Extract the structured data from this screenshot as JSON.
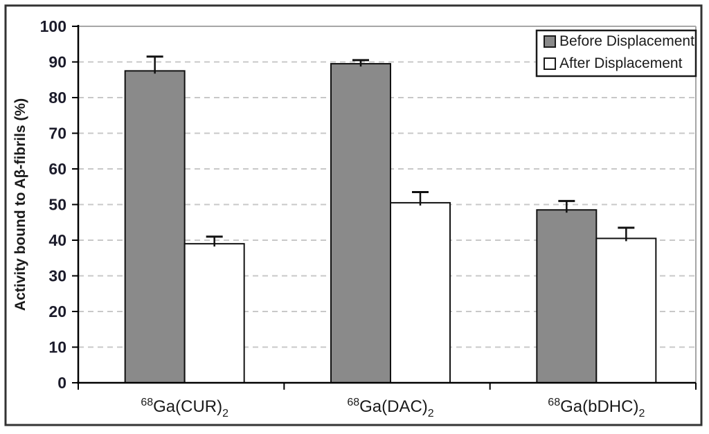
{
  "chart_data": {
    "type": "bar",
    "title": "",
    "ylabel": "Activity bound to Aβ-fibrils (%)",
    "ylim": [
      0,
      100
    ],
    "ytick_step": 10,
    "grid": "horizontal-dashed",
    "legend_position": "top-right-boxed",
    "categories": [
      {
        "prefix_superscript": "68",
        "name": "Ga(CUR)",
        "suffix_subscript": "2"
      },
      {
        "prefix_superscript": "68",
        "name": "Ga(DAC)",
        "suffix_subscript": "2"
      },
      {
        "prefix_superscript": "68",
        "name": "Ga(bDHC)",
        "suffix_subscript": "2"
      }
    ],
    "series": [
      {
        "name": "Before Displacement",
        "key": "before",
        "fill": "#8a8a8a",
        "values": [
          87.5,
          89.5,
          48.5
        ],
        "errors_plus": [
          4.0,
          1.0,
          2.5
        ]
      },
      {
        "name": "After Displacement",
        "key": "after",
        "fill": "#ffffff",
        "values": [
          39.0,
          50.5,
          40.5
        ],
        "errors_plus": [
          2.0,
          3.0,
          3.0
        ]
      }
    ]
  },
  "colors": {
    "background": "#ffffff",
    "frame_border": "#333333",
    "plot_border": "#a6a6a6",
    "gridline": "#c8c8c8",
    "axis": "#000000",
    "bar_stroke": "#111111",
    "error_bar": "#111111",
    "tick_text": "#1c1c2b",
    "label_text": "#1a1a1a",
    "legend_border": "#1a1a1a"
  }
}
